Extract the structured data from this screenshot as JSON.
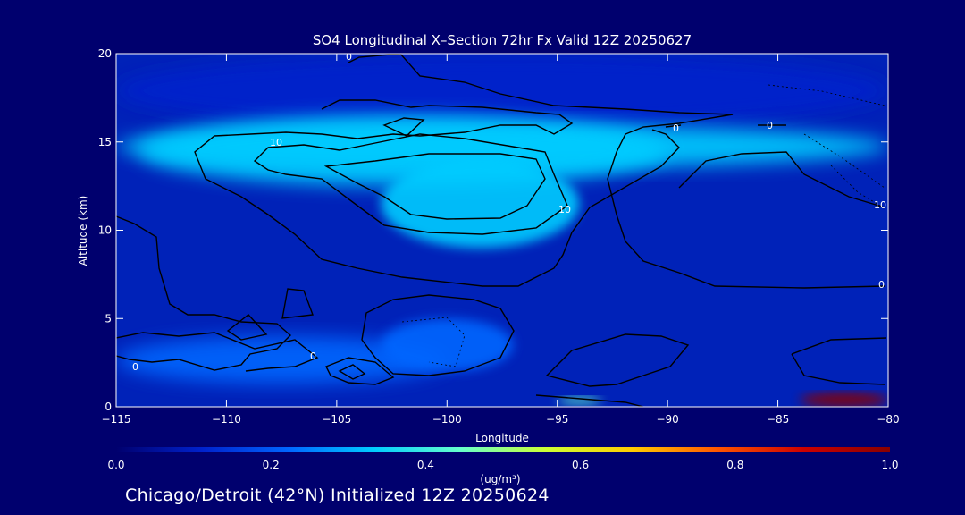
{
  "chart_data": {
    "type": "heatmap",
    "title": "SO4 Longitudinal X–Section 72hr  Fx Valid 12Z 20250627",
    "xlabel": "Longitude",
    "ylabel": "Altitude (km)",
    "xlim": [
      -115,
      -80
    ],
    "ylim": [
      0,
      20
    ],
    "x_ticks": [
      -115,
      -110,
      -105,
      -100,
      -95,
      -90,
      -85,
      -80
    ],
    "y_ticks": [
      0,
      5,
      10,
      15,
      20
    ],
    "x_tick_labels": [
      "−115",
      "−110",
      "−105",
      "−100",
      "−95",
      "−90",
      "−85",
      "−80"
    ],
    "y_tick_labels": [
      "0",
      "5",
      "10",
      "15",
      "20"
    ],
    "colorbar": {
      "min": 0.0,
      "max": 1.0,
      "ticks": [
        0.0,
        0.2,
        0.4,
        0.6,
        0.8,
        1.0
      ],
      "tick_labels": [
        "0.0",
        "0.2",
        "0.4",
        "0.6",
        "0.8",
        "1.0"
      ],
      "units_label": "(ug/m³)",
      "colors": [
        "#00006e",
        "#0022cc",
        "#0066ff",
        "#00ccff",
        "#66ffcc",
        "#ccff33",
        "#ffcc00",
        "#ff5500",
        "#cc0000",
        "#880000"
      ]
    },
    "field_regions": [
      {
        "lon_range": [
          -115,
          -80
        ],
        "alt_range": [
          15.8,
          20
        ],
        "value": 0.12
      },
      {
        "lon_range": [
          -115,
          -80
        ],
        "alt_range": [
          13.5,
          16
        ],
        "value": 0.32
      },
      {
        "lon_range": [
          -114,
          -90
        ],
        "alt_range": [
          12.5,
          16.5
        ],
        "value": 0.38
      },
      {
        "lon_range": [
          -103,
          -94
        ],
        "alt_range": [
          9,
          14
        ],
        "value": 0.3
      },
      {
        "lon_range": [
          -115,
          -100
        ],
        "alt_range": [
          1.3,
          4
        ],
        "value": 0.25
      },
      {
        "lon_range": [
          -103,
          -97
        ],
        "alt_range": [
          2,
          5
        ],
        "value": 0.22
      },
      {
        "lon_range": [
          -95,
          -93
        ],
        "alt_range": [
          0.2,
          0.5
        ],
        "value": 0.45
      },
      {
        "lon_range": [
          -84,
          -80
        ],
        "alt_range": [
          0,
          0.8
        ],
        "value": 0.95
      }
    ],
    "contour_labels": [
      "0",
      "10",
      "0",
      "0",
      "10",
      "0",
      "10",
      "0",
      "0"
    ]
  },
  "footer_text": "Chicago/Detroit (42°N) Initialized 12Z 20250624"
}
